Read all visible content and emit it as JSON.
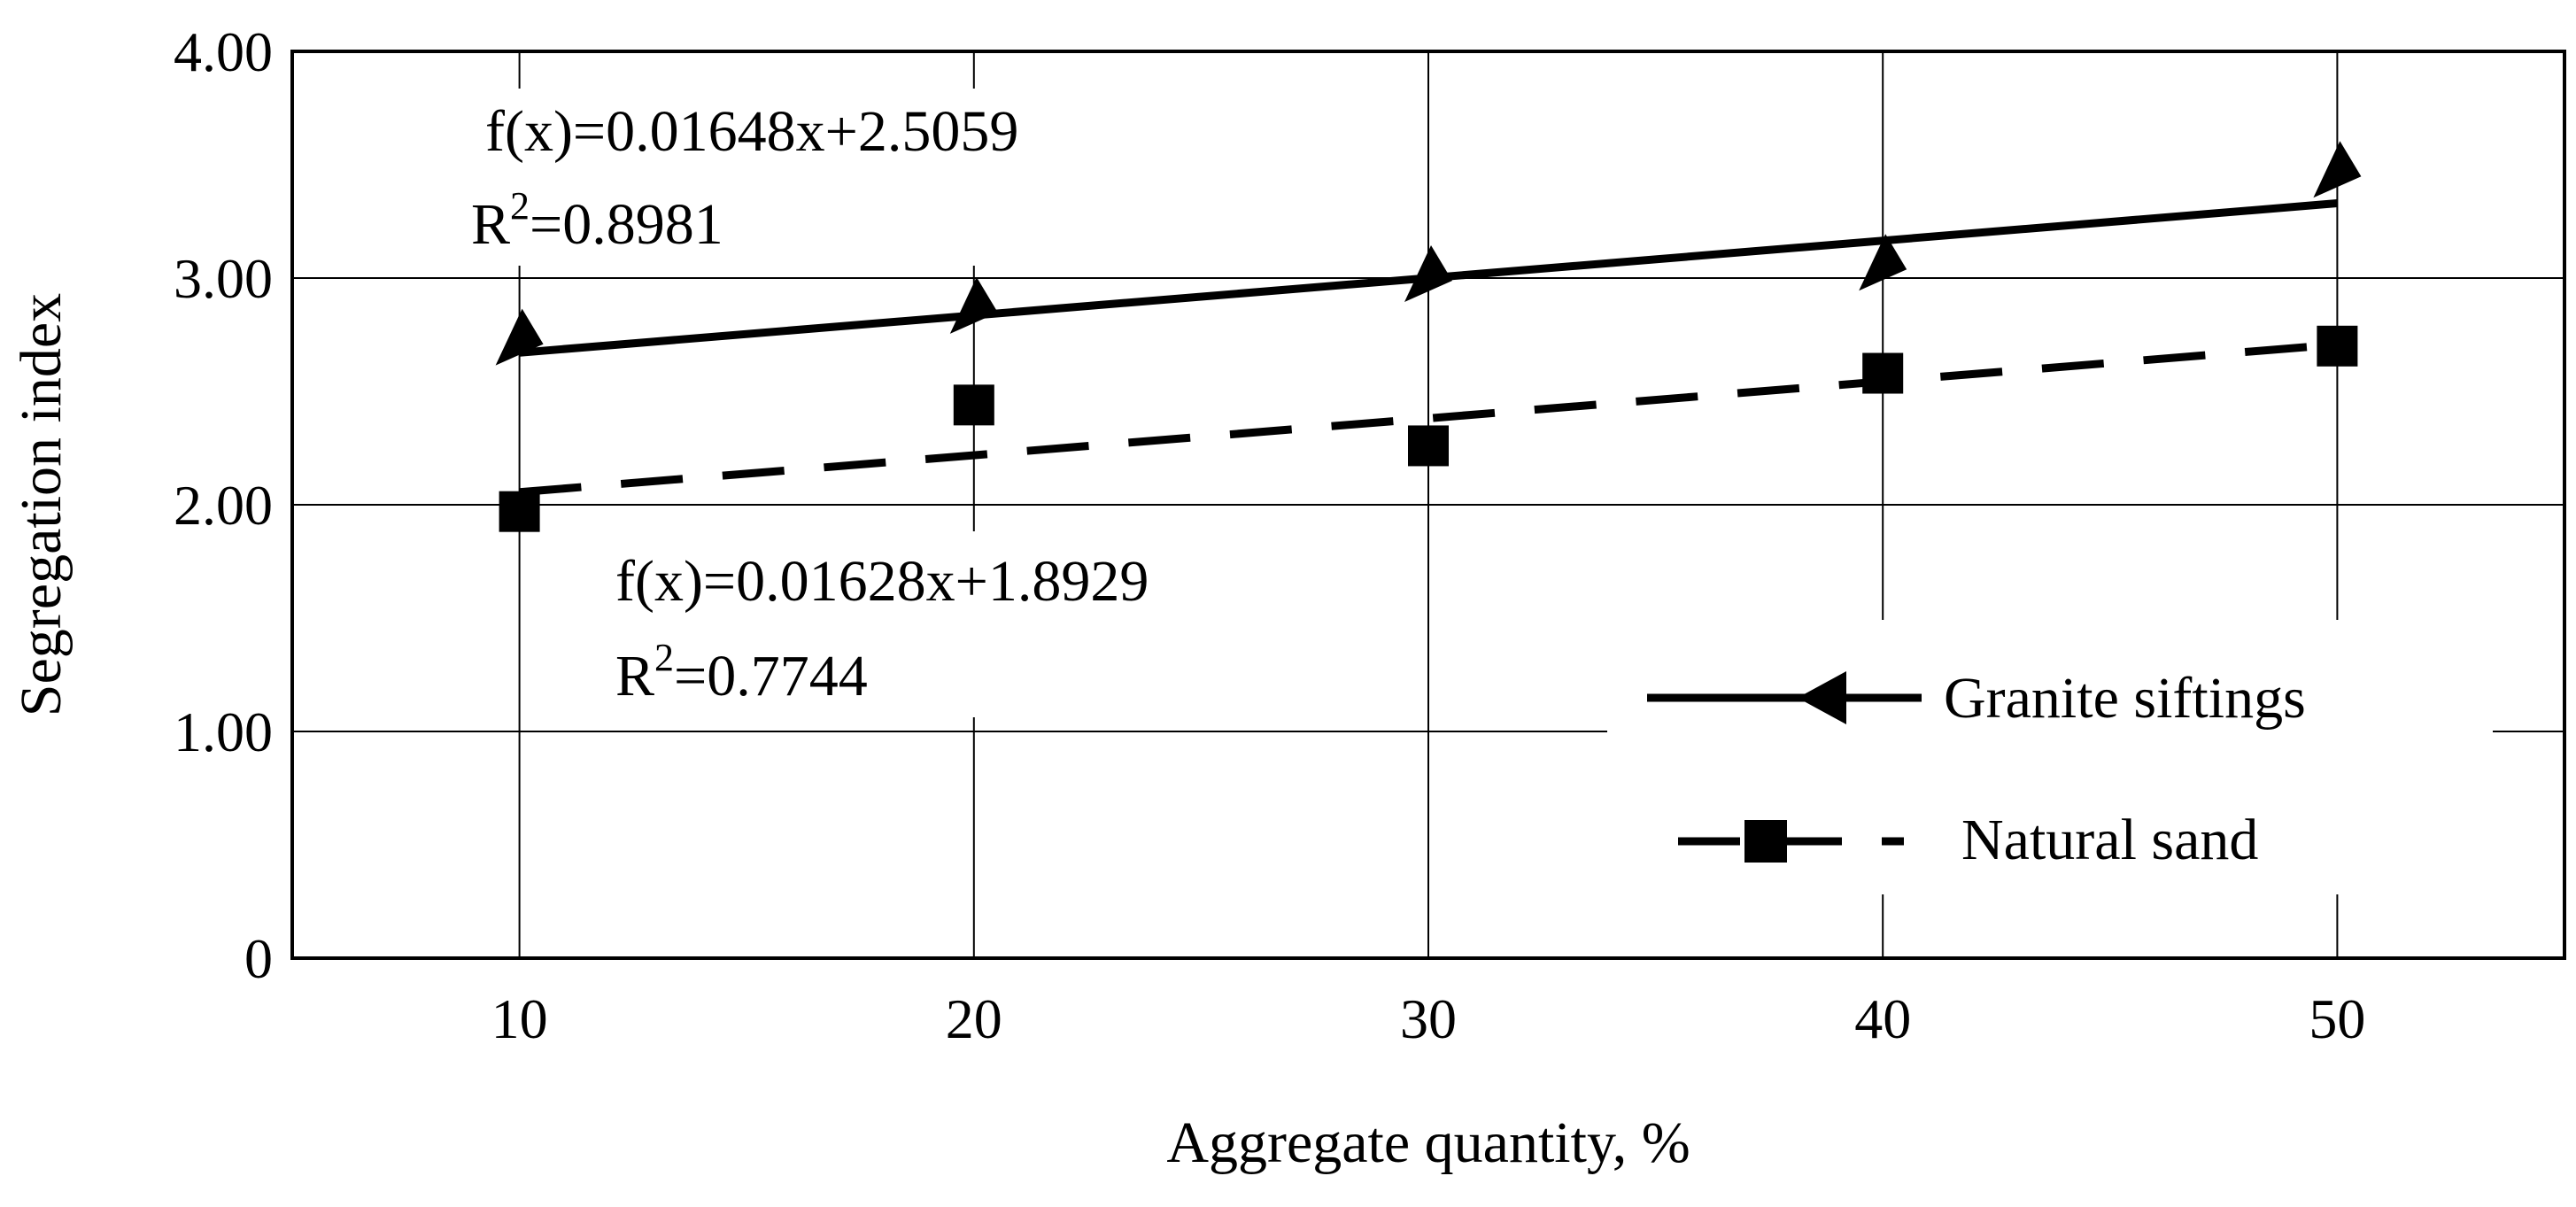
{
  "chart_data": {
    "type": "scatter",
    "xlabel": "Aggregate quantity, %",
    "ylabel": "Segregation index",
    "x": [
      10,
      20,
      30,
      40,
      50
    ],
    "xlim": [
      5,
      55
    ],
    "ylim": [
      0,
      4
    ],
    "xticks": [
      "10",
      "20",
      "30",
      "40",
      "50"
    ],
    "yticks": [
      "0",
      "1.00",
      "2.00",
      "3.00",
      "4.00"
    ],
    "grid": true,
    "legend_position": "bottom-right",
    "series": [
      {
        "name": "Granite siftings",
        "marker": "triangle",
        "line_style": "solid",
        "values": [
          2.72,
          2.86,
          3.0,
          3.05,
          3.46
        ],
        "trendline": {
          "slope": 0.01648,
          "intercept": 2.5059
        },
        "equation": "f(x)=0.01648x+2.5059",
        "r2_prefix": "R",
        "r2_superscript": "2",
        "r2_value": "=0.8981"
      },
      {
        "name": "Natural sand",
        "marker": "square",
        "line_style": "dashed",
        "values": [
          1.97,
          2.44,
          2.26,
          2.58,
          2.7
        ],
        "trendline": {
          "slope": 0.01628,
          "intercept": 1.8929
        },
        "equation": "f(x)=0.01628x+1.8929",
        "r2_prefix": "R",
        "r2_superscript": "2",
        "r2_value": "=0.7744"
      }
    ]
  }
}
